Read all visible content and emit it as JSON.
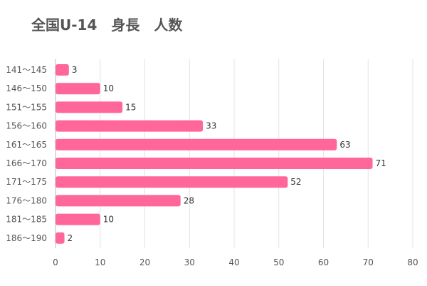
{
  "chart_data": {
    "type": "bar",
    "orientation": "horizontal",
    "title": "全国U-14　身長　人数",
    "categories": [
      "141～145",
      "146～150",
      "151～155",
      "156～160",
      "161～165",
      "166～170",
      "171～175",
      "176～180",
      "181～185",
      "186～190"
    ],
    "values": [
      3,
      10,
      15,
      33,
      63,
      71,
      52,
      28,
      10,
      2
    ],
    "xlim": [
      0,
      80
    ],
    "xticks": [
      0,
      10,
      20,
      30,
      40,
      50,
      60,
      70,
      80
    ],
    "xlabel": "",
    "ylabel": "",
    "grid": true,
    "legend": "none",
    "bar_color": "#ff6699"
  }
}
